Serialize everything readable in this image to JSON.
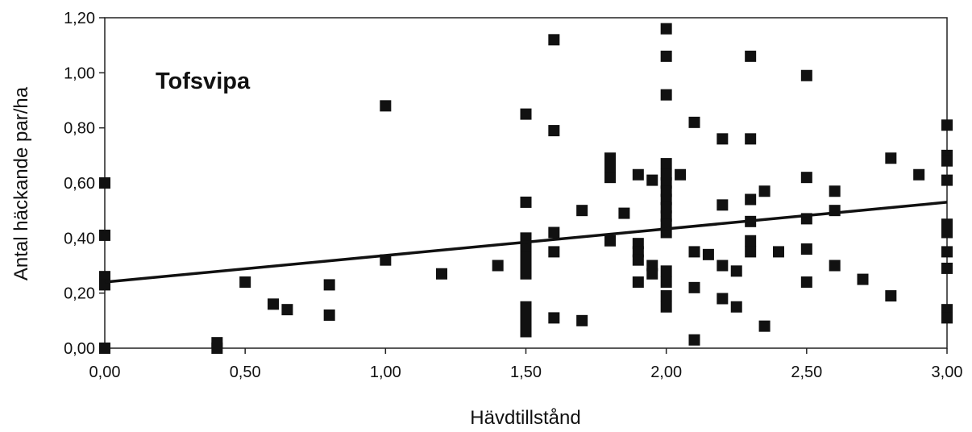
{
  "chart_data": {
    "type": "scatter",
    "annotation": "Tofsvipa",
    "xlabel": "Hävdtillstånd",
    "ylabel": "Antal häckande par/ha",
    "xlim": [
      0,
      3
    ],
    "ylim": [
      0,
      1.2
    ],
    "x_ticks": [
      "0,00",
      "0,50",
      "1,00",
      "1,50",
      "2,00",
      "2,50",
      "3,00"
    ],
    "y_ticks": [
      "0,00",
      "0,20",
      "0,40",
      "0,60",
      "0,80",
      "1,00",
      "1,20"
    ],
    "grid": false,
    "legend": "none",
    "marker": "square",
    "marker_color": "#111111",
    "trendline": {
      "x": [
        0,
        3
      ],
      "y": [
        0.24,
        0.53
      ]
    },
    "points": [
      [
        0,
        0.6
      ],
      [
        0,
        0.41
      ],
      [
        0,
        0.26
      ],
      [
        0,
        0.23
      ],
      [
        0,
        0.0
      ],
      [
        0.4,
        0.02
      ],
      [
        0.4,
        0.0
      ],
      [
        0.5,
        0.24
      ],
      [
        0.6,
        0.16
      ],
      [
        0.65,
        0.14
      ],
      [
        0.8,
        0.23
      ],
      [
        0.8,
        0.12
      ],
      [
        1.0,
        0.88
      ],
      [
        1.0,
        0.32
      ],
      [
        1.2,
        0.27
      ],
      [
        1.4,
        0.3
      ],
      [
        1.5,
        0.85
      ],
      [
        1.5,
        0.53
      ],
      [
        1.5,
        0.4
      ],
      [
        1.5,
        0.37
      ],
      [
        1.5,
        0.33
      ],
      [
        1.5,
        0.3
      ],
      [
        1.5,
        0.27
      ],
      [
        1.5,
        0.15
      ],
      [
        1.5,
        0.12
      ],
      [
        1.5,
        0.09
      ],
      [
        1.5,
        0.06
      ],
      [
        1.6,
        1.12
      ],
      [
        1.6,
        0.79
      ],
      [
        1.6,
        0.42
      ],
      [
        1.6,
        0.35
      ],
      [
        1.6,
        0.11
      ],
      [
        1.7,
        0.5
      ],
      [
        1.7,
        0.1
      ],
      [
        1.8,
        0.69
      ],
      [
        1.8,
        0.66
      ],
      [
        1.8,
        0.62
      ],
      [
        1.8,
        0.39
      ],
      [
        1.85,
        0.49
      ],
      [
        1.9,
        0.63
      ],
      [
        1.9,
        0.38
      ],
      [
        1.9,
        0.35
      ],
      [
        1.9,
        0.32
      ],
      [
        1.9,
        0.24
      ],
      [
        1.95,
        0.61
      ],
      [
        1.95,
        0.3
      ],
      [
        1.95,
        0.27
      ],
      [
        2.0,
        1.16
      ],
      [
        2.0,
        1.06
      ],
      [
        2.0,
        0.92
      ],
      [
        2.0,
        0.67
      ],
      [
        2.0,
        0.63
      ],
      [
        2.0,
        0.6
      ],
      [
        2.0,
        0.57
      ],
      [
        2.0,
        0.54
      ],
      [
        2.0,
        0.51
      ],
      [
        2.0,
        0.48
      ],
      [
        2.0,
        0.45
      ],
      [
        2.0,
        0.42
      ],
      [
        2.0,
        0.28
      ],
      [
        2.0,
        0.24
      ],
      [
        2.0,
        0.19
      ],
      [
        2.0,
        0.15
      ],
      [
        2.05,
        0.63
      ],
      [
        2.1,
        0.82
      ],
      [
        2.1,
        0.35
      ],
      [
        2.1,
        0.22
      ],
      [
        2.1,
        0.03
      ],
      [
        2.15,
        0.34
      ],
      [
        2.2,
        0.76
      ],
      [
        2.2,
        0.52
      ],
      [
        2.2,
        0.3
      ],
      [
        2.2,
        0.18
      ],
      [
        2.25,
        0.28
      ],
      [
        2.25,
        0.15
      ],
      [
        2.3,
        1.06
      ],
      [
        2.3,
        0.76
      ],
      [
        2.3,
        0.54
      ],
      [
        2.3,
        0.46
      ],
      [
        2.3,
        0.39
      ],
      [
        2.3,
        0.35
      ],
      [
        2.35,
        0.57
      ],
      [
        2.35,
        0.08
      ],
      [
        2.4,
        0.35
      ],
      [
        2.5,
        0.99
      ],
      [
        2.5,
        0.62
      ],
      [
        2.5,
        0.47
      ],
      [
        2.5,
        0.36
      ],
      [
        2.5,
        0.24
      ],
      [
        2.6,
        0.57
      ],
      [
        2.6,
        0.5
      ],
      [
        2.6,
        0.3
      ],
      [
        2.7,
        0.25
      ],
      [
        2.8,
        0.69
      ],
      [
        2.8,
        0.19
      ],
      [
        2.9,
        0.63
      ],
      [
        3.0,
        0.81
      ],
      [
        3.0,
        0.7
      ],
      [
        3.0,
        0.68
      ],
      [
        3.0,
        0.61
      ],
      [
        3.0,
        0.45
      ],
      [
        3.0,
        0.42
      ],
      [
        3.0,
        0.35
      ],
      [
        3.0,
        0.29
      ],
      [
        3.0,
        0.14
      ],
      [
        3.0,
        0.11
      ]
    ]
  }
}
